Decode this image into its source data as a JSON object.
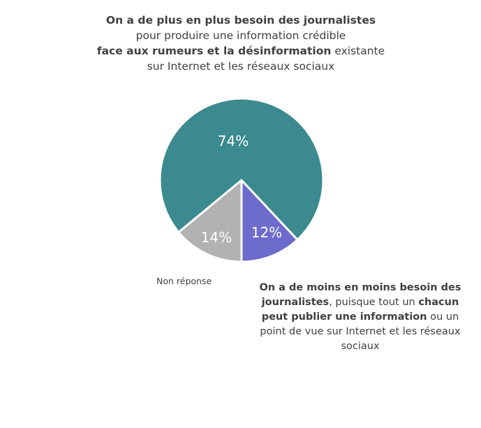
{
  "title": {
    "line1_bold": "On a de plus en plus besoin des journalistes",
    "line2": "pour produire une information crédible",
    "line3_bold": "face aux rumeurs et la désinformation",
    "line3_rest": " existante",
    "line4": "sur Internet et les réseaux sociaux"
  },
  "labels": {
    "non_reponse": "Non réponse",
    "moins_p1_bold": "On a de moins en moins besoin des journalistes",
    "moins_p2": ", puisque tout un ",
    "moins_p3_bold": "chacun peut publier une information",
    "moins_p4": " ou un point de vue sur Internet et les réseaux sociaux"
  },
  "colors": {
    "plus": "#3b8a8f",
    "moins": "#6d6bcc",
    "non_reponse": "#b2b2b2"
  },
  "chart_data": {
    "type": "pie",
    "title": "On a de plus en plus besoin des journalistes pour produire une information crédible face aux rumeurs et la désinformation existante sur Internet et les réseaux sociaux",
    "categories": [
      "On a de plus en plus besoin des journalistes",
      "On a de moins en moins besoin des journalistes",
      "Non réponse"
    ],
    "values": [
      74,
      12,
      14
    ],
    "value_labels": [
      "74%",
      "12%",
      "14%"
    ],
    "colors": [
      "#3b8a8f",
      "#6d6bcc",
      "#b2b2b2"
    ]
  }
}
